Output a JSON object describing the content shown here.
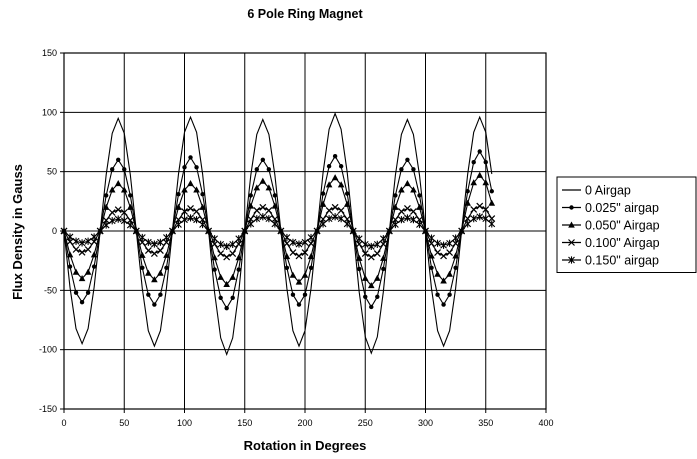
{
  "chart_data": {
    "type": "line",
    "title": "6 Pole Ring Magnet",
    "xlabel": "Rotation in Degrees",
    "ylabel": "Flux Density in Gauss",
    "xlim": [
      0,
      400
    ],
    "ylim": [
      -150,
      150
    ],
    "xticks": [
      0,
      50,
      100,
      150,
      200,
      250,
      300,
      350,
      400
    ],
    "yticks": [
      -150,
      -100,
      -50,
      0,
      50,
      100,
      150
    ],
    "grid": true,
    "legend_position": "right",
    "x_sample_step": 5,
    "x_max_data": 355,
    "series": [
      {
        "name": "0 Airgap",
        "marker": "none",
        "peaks": [
          -95,
          95,
          -97,
          96,
          -104,
          94,
          -97,
          99,
          -103,
          94,
          -97,
          96
        ]
      },
      {
        "name": "0.025\" airgap",
        "marker": "circle",
        "peaks": [
          -60,
          60,
          -62,
          62,
          -65,
          60,
          -62,
          63,
          -64,
          60,
          -62,
          67
        ]
      },
      {
        "name": "0.050\" Airgap",
        "marker": "triangle",
        "peaks": [
          -40,
          40,
          -41,
          40,
          -45,
          42,
          -43,
          45,
          -46,
          40,
          -42,
          47
        ]
      },
      {
        "name": "0.100\" Airgap",
        "marker": "x",
        "peaks": [
          -18,
          18,
          -19,
          19,
          -22,
          20,
          -21,
          20,
          -22,
          19,
          -21,
          21
        ]
      },
      {
        "name": "0.150\" airgap",
        "marker": "star",
        "peaks": [
          -10,
          10,
          -11,
          11,
          -13,
          12,
          -11,
          12,
          -13,
          11,
          -12,
          12
        ]
      }
    ]
  }
}
